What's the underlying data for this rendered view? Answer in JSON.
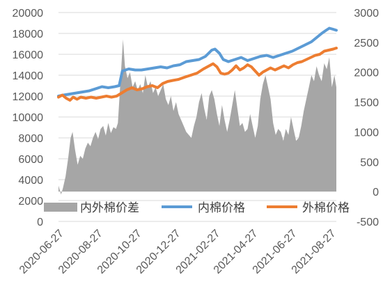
{
  "chart_data": {
    "type": "line",
    "title": "",
    "grid": true,
    "legend_position": "inside-bottom",
    "left_axis": {
      "min": 0,
      "max": 20000,
      "step": 2000,
      "ticks": [
        "0",
        "2000",
        "4000",
        "6000",
        "8000",
        "10000",
        "12000",
        "14000",
        "16000",
        "18000",
        "20000"
      ]
    },
    "right_axis": {
      "min": -500,
      "max": 3000,
      "step": 500,
      "ticks": [
        "-500",
        "0",
        "500",
        "1000",
        "1500",
        "2000",
        "2500",
        "3000"
      ]
    },
    "x_axis": {
      "type": "date",
      "start": "2020-06-27",
      "end": "2021-09-05",
      "tick_labels": [
        "2020-06-27",
        "2020-08-27",
        "2020-10-27",
        "2020-12-27",
        "2021-02-27",
        "2021-04-27",
        "2021-06-27",
        "2021-08-27"
      ]
    },
    "series": [
      {
        "name": "内外棉价差",
        "kind": "area",
        "axis": "right",
        "color": "#a6a6a6",
        "points": [
          [
            "2020-06-27",
            100
          ],
          [
            "2020-07-01",
            -50
          ],
          [
            "2020-07-04",
            60
          ],
          [
            "2020-07-08",
            250
          ],
          [
            "2020-07-12",
            550
          ],
          [
            "2020-07-16",
            900
          ],
          [
            "2020-07-19",
            1000
          ],
          [
            "2020-07-23",
            700
          ],
          [
            "2020-07-27",
            450
          ],
          [
            "2020-07-31",
            600
          ],
          [
            "2020-08-04",
            550
          ],
          [
            "2020-08-08",
            720
          ],
          [
            "2020-08-12",
            820
          ],
          [
            "2020-08-16",
            760
          ],
          [
            "2020-08-20",
            900
          ],
          [
            "2020-08-24",
            1000
          ],
          [
            "2020-08-28",
            880
          ],
          [
            "2020-09-01",
            1050
          ],
          [
            "2020-09-05",
            1100
          ],
          [
            "2020-09-09",
            940
          ],
          [
            "2020-09-13",
            1150
          ],
          [
            "2020-09-17",
            980
          ],
          [
            "2020-09-21",
            1080
          ],
          [
            "2020-09-25",
            1050
          ],
          [
            "2020-09-28",
            1150
          ],
          [
            "2020-10-02",
            1850
          ],
          [
            "2020-10-06",
            2550
          ],
          [
            "2020-10-09",
            2100
          ],
          [
            "2020-10-13",
            1900
          ],
          [
            "2020-10-17",
            2000
          ],
          [
            "2020-10-21",
            1750
          ],
          [
            "2020-10-25",
            1850
          ],
          [
            "2020-10-29",
            1700
          ],
          [
            "2020-11-02",
            1800
          ],
          [
            "2020-11-06",
            1650
          ],
          [
            "2020-11-10",
            1950
          ],
          [
            "2020-11-14",
            1750
          ],
          [
            "2020-11-18",
            1850
          ],
          [
            "2020-11-22",
            1650
          ],
          [
            "2020-11-26",
            1750
          ],
          [
            "2020-11-30",
            1600
          ],
          [
            "2020-12-04",
            1700
          ],
          [
            "2020-12-08",
            1800
          ],
          [
            "2020-12-12",
            1550
          ],
          [
            "2020-12-16",
            1450
          ],
          [
            "2020-12-20",
            1600
          ],
          [
            "2020-12-24",
            1350
          ],
          [
            "2020-12-28",
            1500
          ],
          [
            "2021-01-01",
            1300
          ],
          [
            "2021-01-05",
            1200
          ],
          [
            "2021-01-09",
            1100
          ],
          [
            "2021-01-13",
            1000
          ],
          [
            "2021-01-17",
            950
          ],
          [
            "2021-01-21",
            900
          ],
          [
            "2021-01-25",
            1100
          ],
          [
            "2021-01-29",
            1250
          ],
          [
            "2021-02-02",
            1500
          ],
          [
            "2021-02-06",
            1650
          ],
          [
            "2021-02-10",
            1400
          ],
          [
            "2021-02-14",
            1200
          ],
          [
            "2021-02-18",
            1600
          ],
          [
            "2021-02-22",
            1700
          ],
          [
            "2021-02-26",
            1550
          ],
          [
            "2021-03-02",
            1300
          ],
          [
            "2021-03-06",
            1100
          ],
          [
            "2021-03-10",
            1450
          ],
          [
            "2021-03-14",
            1200
          ],
          [
            "2021-03-18",
            1000
          ],
          [
            "2021-03-22",
            1200
          ],
          [
            "2021-03-26",
            1450
          ],
          [
            "2021-03-30",
            1700
          ],
          [
            "2021-04-03",
            1400
          ],
          [
            "2021-04-07",
            1100
          ],
          [
            "2021-04-11",
            1150
          ],
          [
            "2021-04-15",
            1000
          ],
          [
            "2021-04-19",
            1050
          ],
          [
            "2021-04-23",
            1300
          ],
          [
            "2021-04-27",
            1100
          ],
          [
            "2021-05-01",
            900
          ],
          [
            "2021-05-05",
            1100
          ],
          [
            "2021-05-09",
            1550
          ],
          [
            "2021-05-13",
            1800
          ],
          [
            "2021-05-17",
            1950
          ],
          [
            "2021-05-21",
            1750
          ],
          [
            "2021-05-25",
            1550
          ],
          [
            "2021-05-29",
            1150
          ],
          [
            "2021-06-02",
            950
          ],
          [
            "2021-06-06",
            1050
          ],
          [
            "2021-06-10",
            1000
          ],
          [
            "2021-06-14",
            850
          ],
          [
            "2021-06-18",
            1050
          ],
          [
            "2021-06-22",
            950
          ],
          [
            "2021-06-26",
            1250
          ],
          [
            "2021-06-30",
            1050
          ],
          [
            "2021-07-04",
            850
          ],
          [
            "2021-07-08",
            900
          ],
          [
            "2021-07-12",
            1100
          ],
          [
            "2021-07-16",
            1350
          ],
          [
            "2021-07-20",
            1550
          ],
          [
            "2021-07-24",
            1750
          ],
          [
            "2021-07-28",
            1950
          ],
          [
            "2021-08-01",
            1850
          ],
          [
            "2021-08-05",
            2100
          ],
          [
            "2021-08-09",
            1950
          ],
          [
            "2021-08-13",
            1850
          ],
          [
            "2021-08-17",
            2150
          ],
          [
            "2021-08-21",
            2050
          ],
          [
            "2021-08-25",
            2250
          ],
          [
            "2021-08-29",
            1750
          ],
          [
            "2021-09-02",
            1950
          ],
          [
            "2021-09-05",
            1750
          ]
        ]
      },
      {
        "name": "内棉价格",
        "kind": "line",
        "axis": "left",
        "color": "#5b9bd5",
        "points": [
          [
            "2020-06-27",
            12000
          ],
          [
            "2020-07-05",
            12100
          ],
          [
            "2020-07-15",
            12200
          ],
          [
            "2020-07-25",
            12300
          ],
          [
            "2020-08-04",
            12400
          ],
          [
            "2020-08-14",
            12500
          ],
          [
            "2020-08-24",
            12700
          ],
          [
            "2020-09-03",
            12900
          ],
          [
            "2020-09-13",
            12800
          ],
          [
            "2020-09-23",
            12900
          ],
          [
            "2020-09-30",
            13000
          ],
          [
            "2020-10-05",
            14400
          ],
          [
            "2020-10-15",
            14600
          ],
          [
            "2020-10-25",
            14500
          ],
          [
            "2020-11-04",
            14500
          ],
          [
            "2020-11-14",
            14600
          ],
          [
            "2020-11-24",
            14700
          ],
          [
            "2020-12-04",
            14800
          ],
          [
            "2020-12-14",
            14700
          ],
          [
            "2020-12-24",
            14900
          ],
          [
            "2021-01-03",
            15000
          ],
          [
            "2021-01-13",
            15300
          ],
          [
            "2021-01-23",
            15400
          ],
          [
            "2021-02-02",
            15500
          ],
          [
            "2021-02-12",
            15800
          ],
          [
            "2021-02-22",
            16400
          ],
          [
            "2021-02-27",
            16500
          ],
          [
            "2021-03-06",
            16100
          ],
          [
            "2021-03-12",
            15500
          ],
          [
            "2021-03-20",
            15300
          ],
          [
            "2021-03-30",
            15500
          ],
          [
            "2021-04-09",
            15700
          ],
          [
            "2021-04-19",
            15400
          ],
          [
            "2021-04-29",
            15600
          ],
          [
            "2021-05-09",
            15800
          ],
          [
            "2021-05-19",
            15900
          ],
          [
            "2021-05-29",
            15700
          ],
          [
            "2021-06-08",
            15900
          ],
          [
            "2021-06-18",
            16100
          ],
          [
            "2021-06-28",
            16300
          ],
          [
            "2021-07-08",
            16600
          ],
          [
            "2021-07-18",
            16900
          ],
          [
            "2021-07-28",
            17200
          ],
          [
            "2021-08-05",
            17600
          ],
          [
            "2021-08-13",
            18000
          ],
          [
            "2021-08-20",
            18300
          ],
          [
            "2021-08-25",
            18500
          ],
          [
            "2021-08-31",
            18400
          ],
          [
            "2021-09-05",
            18300
          ]
        ]
      },
      {
        "name": "外棉价格",
        "kind": "line",
        "axis": "left",
        "color": "#ed7d31",
        "points": [
          [
            "2020-06-27",
            11900
          ],
          [
            "2020-07-03",
            12100
          ],
          [
            "2020-07-09",
            11800
          ],
          [
            "2020-07-15",
            11600
          ],
          [
            "2020-07-20",
            11900
          ],
          [
            "2020-07-26",
            11700
          ],
          [
            "2020-08-01",
            11900
          ],
          [
            "2020-08-09",
            11800
          ],
          [
            "2020-08-17",
            11900
          ],
          [
            "2020-08-25",
            11800
          ],
          [
            "2020-09-02",
            11900
          ],
          [
            "2020-09-10",
            12000
          ],
          [
            "2020-09-18",
            11900
          ],
          [
            "2020-09-26",
            12000
          ],
          [
            "2020-10-04",
            12300
          ],
          [
            "2020-10-12",
            12600
          ],
          [
            "2020-10-20",
            12800
          ],
          [
            "2020-10-28",
            12600
          ],
          [
            "2020-11-05",
            12700
          ],
          [
            "2020-11-13",
            12900
          ],
          [
            "2020-11-21",
            13000
          ],
          [
            "2020-11-29",
            12800
          ],
          [
            "2020-12-07",
            13200
          ],
          [
            "2020-12-15",
            13400
          ],
          [
            "2020-12-23",
            13500
          ],
          [
            "2021-01-01",
            13600
          ],
          [
            "2021-01-10",
            13800
          ],
          [
            "2021-01-20",
            14000
          ],
          [
            "2021-01-30",
            14200
          ],
          [
            "2021-02-09",
            14600
          ],
          [
            "2021-02-18",
            14900
          ],
          [
            "2021-02-24",
            15100
          ],
          [
            "2021-03-02",
            14800
          ],
          [
            "2021-03-08",
            14200
          ],
          [
            "2021-03-14",
            14100
          ],
          [
            "2021-03-20",
            14200
          ],
          [
            "2021-03-26",
            14500
          ],
          [
            "2021-04-01",
            14900
          ],
          [
            "2021-04-07",
            14500
          ],
          [
            "2021-04-13",
            14700
          ],
          [
            "2021-04-19",
            15000
          ],
          [
            "2021-04-25",
            14800
          ],
          [
            "2021-05-01",
            14400
          ],
          [
            "2021-05-07",
            14000
          ],
          [
            "2021-05-13",
            14300
          ],
          [
            "2021-05-19",
            14500
          ],
          [
            "2021-05-25",
            14700
          ],
          [
            "2021-06-01",
            14500
          ],
          [
            "2021-06-08",
            14700
          ],
          [
            "2021-06-15",
            14900
          ],
          [
            "2021-06-22",
            14700
          ],
          [
            "2021-06-29",
            15000
          ],
          [
            "2021-07-06",
            15200
          ],
          [
            "2021-07-13",
            15300
          ],
          [
            "2021-07-20",
            15500
          ],
          [
            "2021-07-27",
            15700
          ],
          [
            "2021-08-03",
            15900
          ],
          [
            "2021-08-10",
            16000
          ],
          [
            "2021-08-17",
            16300
          ],
          [
            "2021-08-24",
            16400
          ],
          [
            "2021-08-31",
            16500
          ],
          [
            "2021-09-05",
            16600
          ]
        ]
      }
    ]
  }
}
